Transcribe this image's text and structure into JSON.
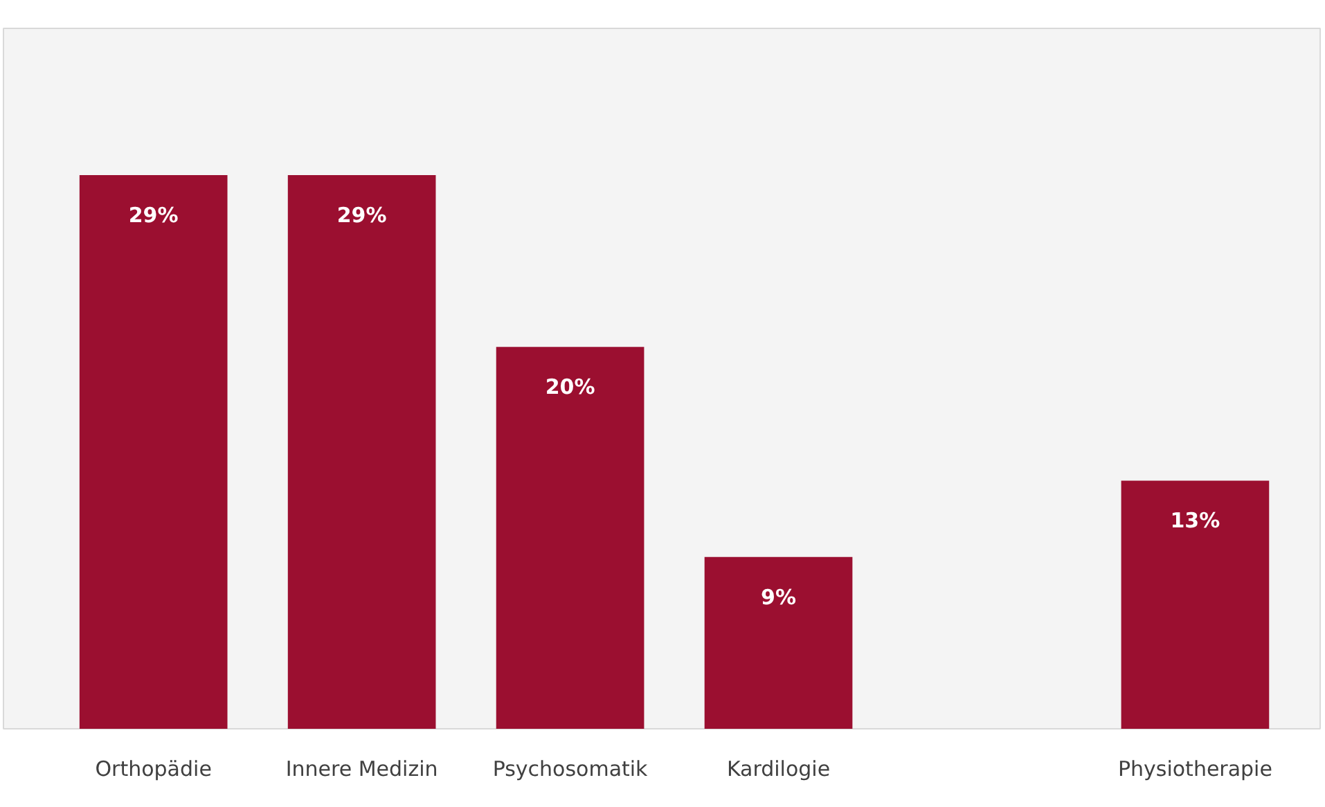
{
  "chart_data": {
    "type": "bar",
    "categories": [
      "Orthopädie",
      "Innere Medizin",
      "Psychosomatik",
      "Kardilogie",
      null,
      "Physiotherapie"
    ],
    "values": [
      29,
      29,
      20,
      9,
      null,
      13
    ],
    "value_labels": [
      "29%",
      "29%",
      "20%",
      "9%",
      null,
      "13%"
    ],
    "color": "#9b0f30"
  }
}
